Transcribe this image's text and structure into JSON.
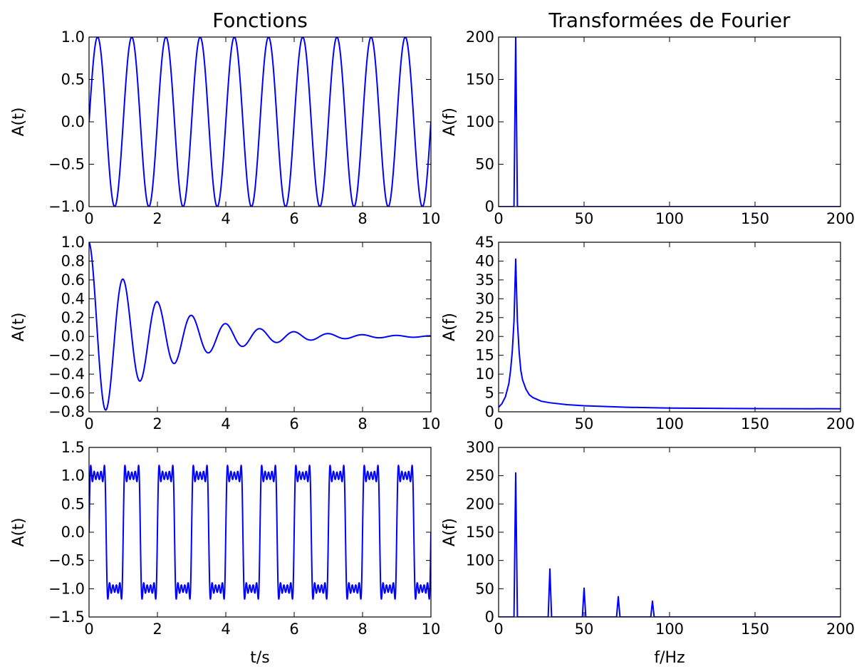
{
  "titles": {
    "left": "Fonctions",
    "right": "Transformées de Fourier"
  },
  "labels": {
    "t_axis": "t/s",
    "f_axis": "f/Hz"
  },
  "colors": {
    "trace": "#0000ff",
    "frame": "#000000"
  },
  "chart_data": [
    {
      "id": "sine-time",
      "type": "line",
      "ylabel": "A(t)",
      "xlabel": "",
      "xlim": [
        0,
        10
      ],
      "ylim": [
        -1,
        1
      ],
      "xticks": [
        0,
        2,
        4,
        6,
        8,
        10
      ],
      "xtick_labels": [
        "0",
        "2",
        "4",
        "6",
        "8",
        "10"
      ],
      "yticks": [
        -1,
        -0.5,
        0,
        0.5,
        1
      ],
      "ytick_labels": [
        "−1.0",
        "−0.5",
        "0.0",
        "0.5",
        "1.0"
      ],
      "series": [
        {
          "function": "sin(2π·1·t)",
          "frequency_hz": 1,
          "amplitude": 1
        }
      ]
    },
    {
      "id": "sine-fft",
      "type": "line",
      "ylabel": "A(f)",
      "xlabel": "",
      "xlim": [
        0,
        200
      ],
      "ylim": [
        0,
        200
      ],
      "xticks": [
        0,
        50,
        100,
        150,
        200
      ],
      "xtick_labels": [
        "0",
        "50",
        "100",
        "150",
        "200"
      ],
      "yticks": [
        0,
        50,
        100,
        150,
        200
      ],
      "ytick_labels": [
        "0",
        "50",
        "100",
        "150",
        "200"
      ],
      "series": [
        {
          "x": [
            0,
            8,
            9,
            10,
            11,
            12,
            200
          ],
          "y": [
            0,
            0,
            0,
            200,
            0,
            0,
            0
          ]
        }
      ]
    },
    {
      "id": "damped-time",
      "type": "line",
      "ylabel": "A(t)",
      "xlabel": "",
      "xlim": [
        0,
        10
      ],
      "ylim": [
        -0.8,
        1.0
      ],
      "xticks": [
        0,
        2,
        4,
        6,
        8,
        10
      ],
      "xtick_labels": [
        "0",
        "2",
        "4",
        "6",
        "8",
        "10"
      ],
      "yticks": [
        -0.8,
        -0.6,
        -0.4,
        -0.2,
        0,
        0.2,
        0.4,
        0.6,
        0.8,
        1.0
      ],
      "ytick_labels": [
        "−0.8",
        "−0.6",
        "−0.4",
        "−0.2",
        "0.0",
        "0.2",
        "0.4",
        "0.6",
        "0.8",
        "1.0"
      ],
      "series": [
        {
          "function": "exp(−0.5·t)·cos(2π·1·t)",
          "frequency_hz": 1,
          "decay_rate": 0.5
        }
      ]
    },
    {
      "id": "damped-fft",
      "type": "line",
      "ylabel": "A(f)",
      "xlabel": "",
      "xlim": [
        0,
        200
      ],
      "ylim": [
        0,
        45
      ],
      "xticks": [
        0,
        50,
        100,
        150,
        200
      ],
      "xtick_labels": [
        "0",
        "50",
        "100",
        "150",
        "200"
      ],
      "yticks": [
        0,
        5,
        10,
        15,
        20,
        25,
        30,
        35,
        40,
        45
      ],
      "ytick_labels": [
        "0",
        "5",
        "10",
        "15",
        "20",
        "25",
        "30",
        "35",
        "40",
        "45"
      ],
      "series": [
        {
          "x": [
            0,
            2,
            4,
            6,
            7,
            8,
            9,
            10,
            11,
            12,
            13,
            14,
            16,
            18,
            20,
            25,
            30,
            40,
            50,
            75,
            100,
            150,
            200
          ],
          "y": [
            1.2,
            2.2,
            4,
            7.5,
            11,
            16,
            24,
            40.5,
            24,
            16,
            11,
            8.5,
            6,
            4.5,
            3.8,
            2.8,
            2.4,
            1.9,
            1.6,
            1.2,
            1.0,
            0.85,
            0.8
          ]
        }
      ]
    },
    {
      "id": "square-time",
      "type": "line",
      "ylabel": "A(t)",
      "xlabel": "t/s",
      "xlim": [
        0,
        10
      ],
      "ylim": [
        -1.5,
        1.5
      ],
      "xticks": [
        0,
        2,
        4,
        6,
        8,
        10
      ],
      "xtick_labels": [
        "0",
        "2",
        "4",
        "6",
        "8",
        "10"
      ],
      "yticks": [
        -1.5,
        -1,
        -0.5,
        0,
        0.5,
        1,
        1.5
      ],
      "ytick_labels": [
        "−1.5",
        "−1.0",
        "−0.5",
        "0.0",
        "0.5",
        "1.0",
        "1.5"
      ],
      "series": [
        {
          "function": "square wave, 1 Hz, odd harmonics 1–9 (Gibbs ripple)",
          "frequency_hz": 1,
          "harmonics": [
            1,
            3,
            5,
            7,
            9
          ]
        }
      ]
    },
    {
      "id": "square-fft",
      "type": "line",
      "ylabel": "A(f)",
      "xlabel": "f/Hz",
      "xlim": [
        0,
        200
      ],
      "ylim": [
        0,
        300
      ],
      "xticks": [
        0,
        50,
        100,
        150,
        200
      ],
      "xtick_labels": [
        "0",
        "50",
        "100",
        "150",
        "200"
      ],
      "yticks": [
        0,
        50,
        100,
        150,
        200,
        250,
        300
      ],
      "ytick_labels": [
        "0",
        "50",
        "100",
        "150",
        "200",
        "250",
        "300"
      ],
      "series": [
        {
          "x": [
            0,
            9,
            10,
            11,
            29,
            30,
            31,
            49,
            50,
            51,
            69,
            70,
            71,
            89,
            90,
            91,
            200
          ],
          "y": [
            0,
            0,
            255,
            0,
            0,
            85,
            0,
            0,
            51,
            0,
            0,
            36,
            0,
            0,
            28,
            0,
            0
          ]
        }
      ]
    }
  ]
}
